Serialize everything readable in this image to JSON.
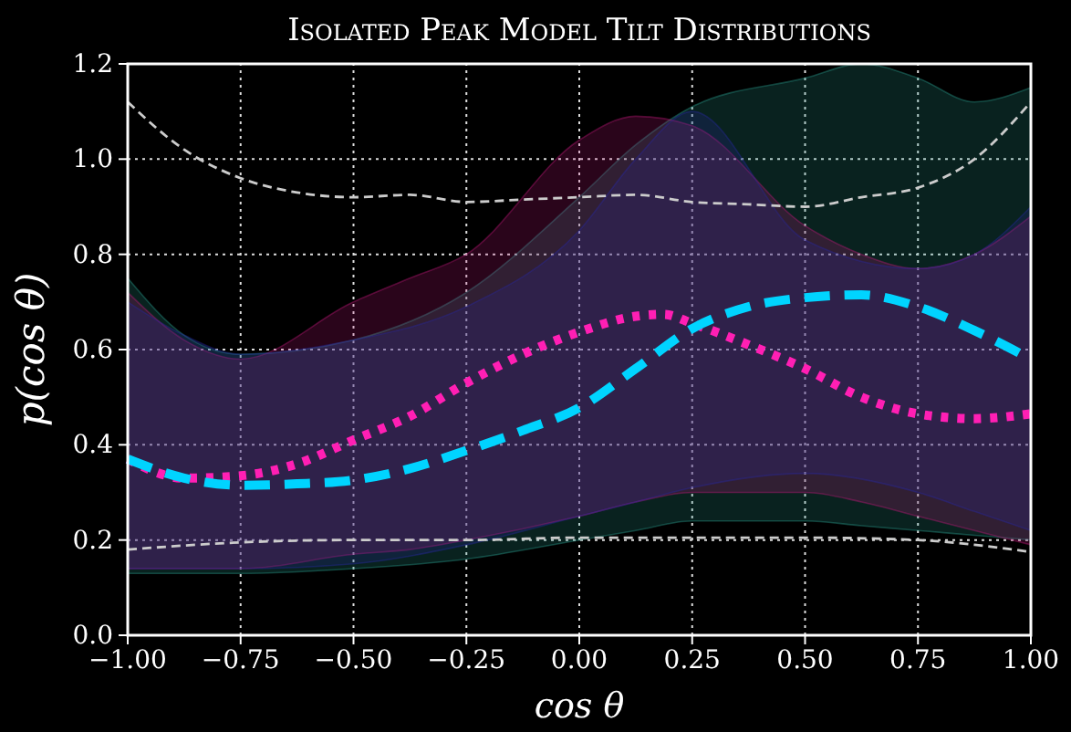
{
  "chart_data": {
    "type": "line",
    "title": "Isolated Peak Model Tilt Distributions",
    "xlabel": "cos θ",
    "ylabel": "p(cos θ)",
    "xlim": [
      -1,
      1
    ],
    "ylim": [
      0,
      1.2
    ],
    "xticks": [
      {
        "value": -1,
        "label": "−1.00"
      },
      {
        "value": -0.75,
        "label": "−0.75"
      },
      {
        "value": -0.5,
        "label": "−0.50"
      },
      {
        "value": -0.25,
        "label": "−0.25"
      },
      {
        "value": 0,
        "label": "0.00"
      },
      {
        "value": 0.25,
        "label": "0.25"
      },
      {
        "value": 0.5,
        "label": "0.50"
      },
      {
        "value": 0.75,
        "label": "0.75"
      },
      {
        "value": 1,
        "label": "1.00"
      }
    ],
    "yticks": [
      {
        "value": 0,
        "label": "0.0"
      },
      {
        "value": 0.2,
        "label": "0.2"
      },
      {
        "value": 0.4,
        "label": "0.4"
      },
      {
        "value": 0.6,
        "label": "0.6"
      },
      {
        "value": 0.8,
        "label": "0.8"
      },
      {
        "value": 1,
        "label": "1.0"
      },
      {
        "value": 1.2,
        "label": "1.2"
      }
    ],
    "grid": true,
    "series": [
      {
        "color": "#2a9d8f",
        "x": [
          -1,
          -0.875,
          -0.75,
          -0.5,
          -0.25,
          0,
          0.125,
          0.25,
          0.5,
          0.625,
          0.75,
          0.875,
          1
        ],
        "values": [
          null,
          null,
          null,
          null,
          null,
          null,
          null,
          null,
          null,
          null,
          null,
          null,
          null
        ],
        "lower": [
          0.13,
          0.13,
          0.13,
          0.14,
          0.16,
          0.2,
          0.22,
          0.24,
          0.24,
          0.23,
          0.22,
          0.21,
          0.2
        ],
        "upper": [
          0.75,
          0.63,
          0.59,
          0.62,
          0.72,
          0.92,
          1.03,
          1.11,
          1.17,
          1.2,
          1.17,
          1.12,
          1.15
        ]
      },
      {
        "color": "#c0187a",
        "x": [
          -1,
          -0.875,
          -0.75,
          -0.5,
          -0.375,
          -0.25,
          0,
          0.125,
          0.25,
          0.5,
          0.625,
          0.75,
          0.875,
          1
        ],
        "values": [
          null,
          null,
          null,
          null,
          null,
          null,
          null,
          null,
          null,
          null,
          null,
          null,
          null,
          null
        ],
        "lower": [
          0.14,
          0.14,
          0.14,
          0.17,
          0.18,
          0.2,
          0.25,
          0.28,
          0.3,
          0.3,
          0.28,
          0.25,
          0.22,
          0.19
        ],
        "upper": [
          0.72,
          0.62,
          0.58,
          0.7,
          0.75,
          0.8,
          1.04,
          1.09,
          1.07,
          0.86,
          0.8,
          0.77,
          0.8,
          0.88
        ]
      },
      {
        "color": "#2828a0",
        "x": [
          -1,
          -0.875,
          -0.75,
          -0.5,
          -0.25,
          0,
          0.125,
          0.25,
          0.5,
          0.75,
          0.875,
          1
        ],
        "values": [
          null,
          null,
          null,
          null,
          null,
          null,
          null,
          null,
          null,
          null,
          null,
          null
        ],
        "lower": [
          0.14,
          0.14,
          0.14,
          0.15,
          0.19,
          0.25,
          0.28,
          0.31,
          0.34,
          0.3,
          0.26,
          0.22
        ],
        "upper": [
          0.7,
          0.63,
          0.59,
          0.62,
          0.69,
          0.85,
          1.0,
          1.1,
          0.83,
          0.77,
          0.8,
          0.9
        ]
      },
      {
        "color": "#cccccc",
        "line_style": "dashed",
        "x": [
          -1,
          -0.875,
          -0.75,
          -0.625,
          -0.5,
          -0.375,
          -0.25,
          -0.125,
          0,
          0.125,
          0.25,
          0.375,
          0.5,
          0.625,
          0.75,
          0.875,
          1
        ],
        "values": [
          1.12,
          1.02,
          0.96,
          0.93,
          0.92,
          0.925,
          0.91,
          0.915,
          0.92,
          0.925,
          0.91,
          0.905,
          0.9,
          0.92,
          0.94,
          1.0,
          1.12
        ]
      },
      {
        "color": "#cccccc",
        "line_style": "dashed",
        "x": [
          -1,
          -0.75,
          -0.5,
          -0.25,
          0,
          0.25,
          0.5,
          0.75,
          0.875,
          1
        ],
        "values": [
          0.18,
          0.195,
          0.2,
          0.2,
          0.205,
          0.205,
          0.205,
          0.2,
          0.19,
          0.175
        ]
      },
      {
        "color": "#ff1fb4",
        "line_style": "dotted",
        "x": [
          -1,
          -0.875,
          -0.75,
          -0.625,
          -0.5,
          -0.375,
          -0.25,
          -0.125,
          0,
          0.125,
          0.1875,
          0.25,
          0.375,
          0.5,
          0.625,
          0.75,
          0.875,
          1
        ],
        "values": [
          0.37,
          0.33,
          0.335,
          0.36,
          0.41,
          0.46,
          0.53,
          0.59,
          0.637,
          0.67,
          0.674,
          0.655,
          0.61,
          0.56,
          0.5,
          0.465,
          0.455,
          0.465
        ]
      },
      {
        "color": "#00d4ff",
        "line_style": "dashed",
        "x": [
          -1,
          -0.875,
          -0.75,
          -0.625,
          -0.5,
          -0.375,
          -0.25,
          -0.125,
          0,
          0.125,
          0.25,
          0.375,
          0.5,
          0.625,
          0.75,
          0.875,
          1
        ],
        "values": [
          0.37,
          0.33,
          0.315,
          0.318,
          0.326,
          0.35,
          0.388,
          0.43,
          0.478,
          0.56,
          0.644,
          0.69,
          0.709,
          0.715,
          0.69,
          0.64,
          0.58
        ]
      }
    ]
  }
}
